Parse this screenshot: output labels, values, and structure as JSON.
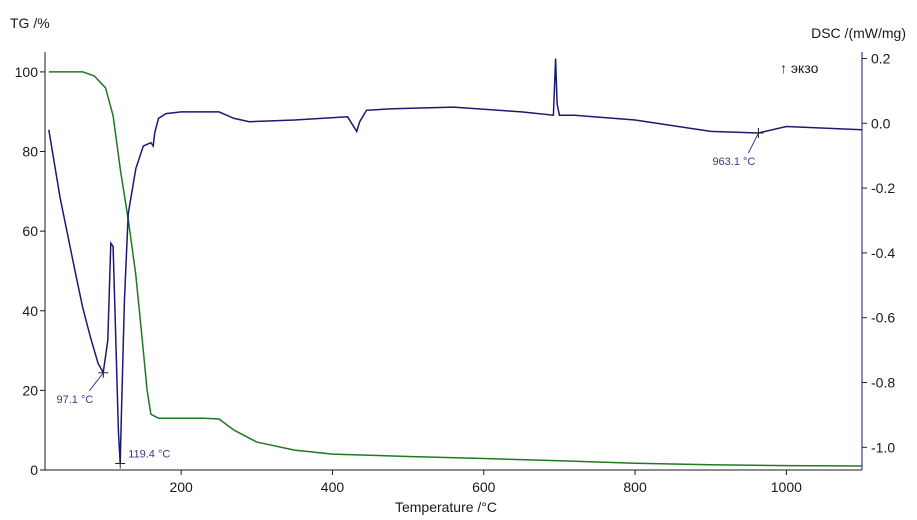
{
  "chart_data": {
    "type": "line",
    "xlabel": "Temperature /°C",
    "y_left_label": "TG /%",
    "y_right_label": "DSC /(mW/mg)",
    "exo_label": "↑ экзо",
    "xlim": [
      20,
      1100
    ],
    "ylim_left": [
      0,
      105
    ],
    "ylim_right": [
      -1.07,
      0.22
    ],
    "x_ticks": [
      200,
      400,
      600,
      800,
      1000
    ],
    "x_tick_labels": [
      "200",
      "400",
      "600",
      "800",
      "1000"
    ],
    "y_left_ticks": [
      0,
      20,
      40,
      60,
      80,
      100
    ],
    "y_left_tick_labels": [
      "0",
      "20",
      "40",
      "60",
      "80",
      "100"
    ],
    "y_right_ticks": [
      0.2,
      0.0,
      -0.2,
      -0.4,
      -0.6,
      -0.8,
      -1.0
    ],
    "y_right_tick_labels": [
      "0.2",
      "0.0",
      "-0.2",
      "-0.4",
      "-0.6",
      "-0.8",
      "-1.0"
    ],
    "grid": false,
    "colors": {
      "tg": "#1f7a1f",
      "dsc": "#1a1a6e",
      "annotation": "#3a3a8a",
      "axis": "#1a1a6e"
    },
    "series": [
      {
        "axis": "left",
        "x": [
          25,
          70,
          85,
          100,
          110,
          120,
          130,
          140,
          150,
          155,
          160,
          170,
          200,
          230,
          250,
          270,
          300,
          350,
          400,
          500,
          600,
          700,
          800,
          900,
          1000,
          1100
        ],
        "y": [
          100,
          100,
          99,
          96,
          89,
          75,
          63,
          49,
          30,
          20,
          14,
          13,
          13,
          13,
          12.8,
          10,
          7,
          5,
          4,
          3.4,
          2.9,
          2.3,
          1.7,
          1.3,
          1.1,
          1.0
        ]
      },
      {
        "axis": "right",
        "x": [
          25,
          40,
          60,
          70,
          80,
          90,
          97,
          103,
          107,
          110,
          114,
          117,
          119.4,
          121,
          125,
          130,
          140,
          150,
          160,
          163,
          165,
          170,
          180,
          200,
          250,
          270,
          290,
          350,
          420,
          432,
          436,
          445,
          480,
          560,
          650,
          692,
          695,
          697,
          700,
          720,
          800,
          900,
          963,
          1000,
          1100
        ],
        "y": [
          -0.02,
          -0.23,
          -0.46,
          -0.57,
          -0.66,
          -0.74,
          -0.77,
          -0.67,
          -0.37,
          -0.38,
          -0.7,
          -0.95,
          -1.05,
          -0.9,
          -0.55,
          -0.28,
          -0.14,
          -0.07,
          -0.06,
          -0.07,
          -0.03,
          0.015,
          0.03,
          0.035,
          0.035,
          0.015,
          0.005,
          0.01,
          0.02,
          -0.025,
          0.005,
          0.04,
          0.045,
          0.05,
          0.035,
          0.025,
          0.2,
          0.06,
          0.025,
          0.025,
          0.01,
          -0.025,
          -0.03,
          -0.01,
          -0.02
        ]
      }
    ],
    "annotations": [
      {
        "x": 97.1,
        "axis": "right",
        "y": -0.77,
        "label": "97.1 °C"
      },
      {
        "x": 119.4,
        "axis": "right",
        "y": -1.05,
        "label": "119.4 °C"
      },
      {
        "x": 963.1,
        "axis": "right",
        "y": -0.03,
        "label": "963.1 °C"
      }
    ]
  }
}
